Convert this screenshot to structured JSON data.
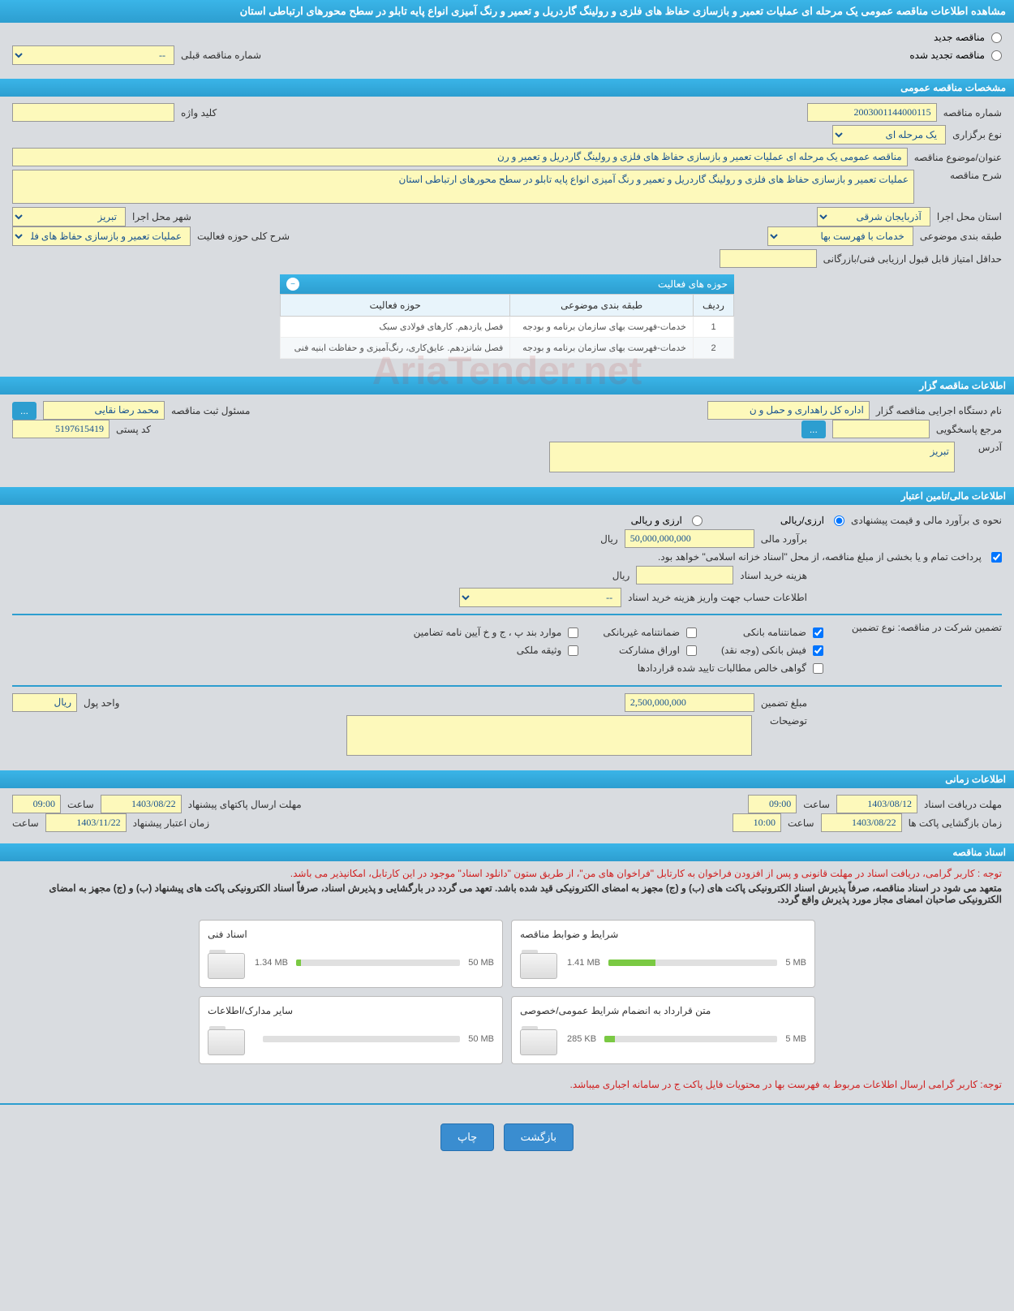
{
  "page_title": "مشاهده اطلاعات مناقصه عمومی یک مرحله ای عملیات تعمیر و بازسازی حفاظ های فلزی و رولینگ گاردریل و تعمیر و رنگ آمیزی انواع پایه تابلو در سطح محورهای ارتباطی استان",
  "radios": {
    "new_tender": "مناقصه جدید",
    "renewed_tender": "مناقصه تجدید شده",
    "prev_number_label": "شماره مناقصه قبلی",
    "prev_number_value": "--"
  },
  "sections": {
    "general": "مشخصات مناقصه عمومی",
    "tenderer": "اطلاعات مناقصه گزار",
    "financial": "اطلاعات مالی/تامین اعتبار",
    "timing": "اطلاعات زمانی",
    "docs": "اسناد مناقصه"
  },
  "general": {
    "number_label": "شماره مناقصه",
    "number_value": "2003001144000115",
    "keyword_label": "کلید واژه",
    "keyword_value": "",
    "type_label": "نوع برگزاری",
    "type_value": "یک مرحله ای",
    "subject_label": "عنوان/موضوع مناقصه",
    "subject_value": "مناقصه عمومی یک مرحله ای عملیات تعمیر و بازسازی حفاظ های فلزی و رولینگ گاردریل و تعمیر و رن",
    "desc_label": "شرح مناقصه",
    "desc_value": "عملیات تعمیر و بازسازی حفاظ های فلزی و رولینگ گاردریل و تعمیر و رنگ آمیزی انواع پایه تابلو در سطح محورهای ارتباطی استان",
    "province_label": "استان محل اجرا",
    "province_value": "آذربایجان شرقی",
    "city_label": "شهر محل اجرا",
    "city_value": "تبریز",
    "category_label": "طبقه بندی موضوعی",
    "category_value": "خدمات با فهرست بها",
    "activity_desc_label": "شرح کلی حوزه فعالیت",
    "activity_desc_value": "عملیات تعمیر و بازسازی حفاظ های فلزی و رولینگ",
    "min_score_label": "حداقل امتیاز قابل قبول ارزیابی فنی/بازرگانی",
    "min_score_value": ""
  },
  "activities_table": {
    "title": "حوزه های فعالیت",
    "col_row": "ردیف",
    "col_category": "طبقه بندی موضوعی",
    "col_activity": "حوزه فعالیت",
    "rows": [
      {
        "n": "1",
        "cat": "خدمات-فهرست بهای سازمان برنامه و بودجه",
        "act": "فصل یازدهم. کارهای فولادی سبک"
      },
      {
        "n": "2",
        "cat": "خدمات-فهرست بهای سازمان برنامه و بودجه",
        "act": "فصل شانزدهم. عایق‌کاری، رنگ‌آمیزی و حفاظت ابنیه فنی"
      }
    ]
  },
  "tenderer": {
    "org_label": "نام دستگاه اجرایی مناقصه گزار",
    "org_value": "اداره کل راهداری و حمل و ن",
    "registrar_label": "مسئول ثبت مناقصه",
    "registrar_value": "محمد رضا نقایی",
    "more_btn": "...",
    "contact_label": "مرجع پاسخگویی",
    "contact_value": "",
    "contact_btn": "...",
    "postal_label": "کد پستی",
    "postal_value": "5197615419",
    "address_label": "آدرس",
    "address_value": "تبریز"
  },
  "financial": {
    "estimate_method_label": "نحوه ی برآورد مالی و قیمت پیشنهادی",
    "opt_rial": "ارزی/ریالی",
    "opt_rial2": "ارزی و ریالی",
    "estimate_label": "برآورد مالی",
    "estimate_value": "50,000,000,000",
    "currency": "ریال",
    "treasury_note": "پرداخت تمام و یا بخشی از مبلغ مناقصه، از محل \"اسناد خزانه اسلامی\" خواهد بود.",
    "doc_cost_label": "هزینه خرید اسناد",
    "doc_cost_value": "",
    "account_label": "اطلاعات حساب جهت واریز هزینه خرید اسناد",
    "account_value": "--",
    "guarantee_type_label": "تضمین شرکت در مناقصه:   نوع تضمین",
    "cb_bank_guarantee": "ضمانتنامه بانکی",
    "cb_nonbank_guarantee": "ضمانتنامه غیربانکی",
    "cb_bond": "موارد بند پ ، ج و خ آیین نامه تضامین",
    "cb_bank_receipt": "فیش بانکی (وجه نقد)",
    "cb_participation": "اوراق مشارکت",
    "cb_property": "وثیقه ملکی",
    "cb_claims": "گواهی خالص مطالبات تایید شده قراردادها",
    "guarantee_amount_label": "مبلغ تضمین",
    "guarantee_amount_value": "2,500,000,000",
    "unit_label": "واحد پول",
    "unit_value": "ریال",
    "notes_label": "توضیحات",
    "notes_value": ""
  },
  "timing": {
    "doc_receive_label": "مهلت دریافت اسناد",
    "doc_receive_date": "1403/08/12",
    "doc_receive_time": "09:00",
    "time_label": "ساعت",
    "packet_send_label": "مهلت ارسال پاکتهای پیشنهاد",
    "packet_send_date": "1403/08/22",
    "packet_send_time": "09:00",
    "open_label": "زمان بازگشایی پاکت ها",
    "open_date": "1403/08/22",
    "open_time": "10:00",
    "validity_label": "زمان اعتبار پیشنهاد",
    "validity_date": "1403/11/22",
    "validity_time": "09:00"
  },
  "docs": {
    "note1": "توجه : کاربر گرامی، دریافت اسناد در مهلت قانونی و پس از افزودن فراخوان به کارتابل \"فراخوان های من\"، از طریق ستون \"دانلود اسناد\" موجود در این کارتابل، امکانپذیر می باشد.",
    "note2": "متعهد می شود در اسناد مناقصه، صرفاً پذیرش اسناد الکترونیکی پاکت های (ب) و (ج) مجهز به امضای الکترونیکی قید شده باشد. تعهد می گردد در بارگشایی و پذیرش اسناد، صرفاً اسناد الکترونیکی پاکت های پیشنهاد (ب) و (ج) مجهز به امضای الکترونیکی صاحبان امضای مجاز مورد پذیرش واقع گردد.",
    "note3": "توجه: کاربر گرامی ارسال اطلاعات مربوط به فهرست بها در محتویات فایل پاکت ج در سامانه اجباری میباشد.",
    "files": [
      {
        "title": "شرایط و ضوابط مناقصه",
        "used": "1.41 MB",
        "total": "5 MB",
        "pct": 28
      },
      {
        "title": "اسناد فنی",
        "used": "1.34 MB",
        "total": "50 MB",
        "pct": 3
      },
      {
        "title": "متن قرارداد به انضمام شرایط عمومی/خصوصی",
        "used": "285 KB",
        "total": "5 MB",
        "pct": 6
      },
      {
        "title": "سایر مدارک/اطلاعات",
        "used": "",
        "total": "50 MB",
        "pct": 0
      }
    ]
  },
  "footer": {
    "back": "بازگشت",
    "print": "چاپ"
  },
  "watermark": "AriaTender.net"
}
